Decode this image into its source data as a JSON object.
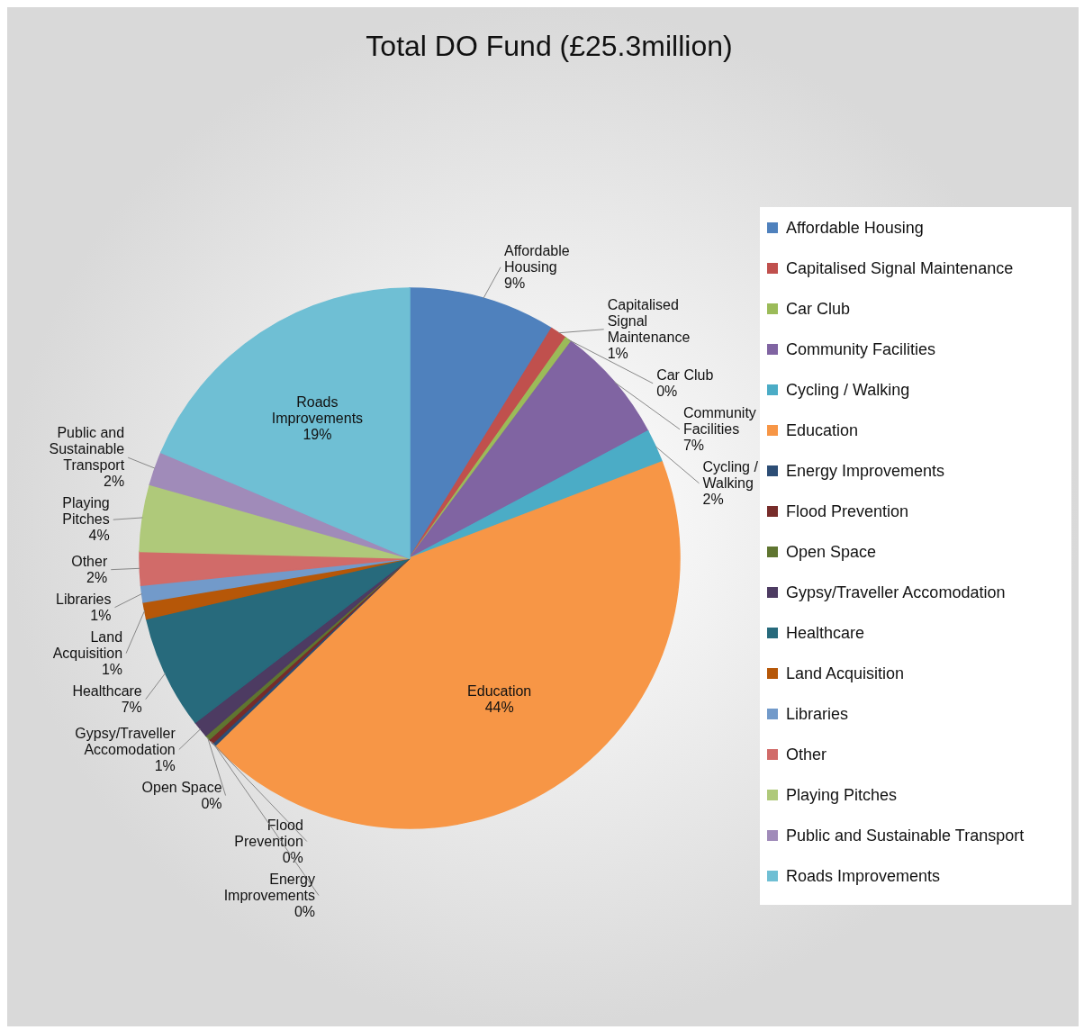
{
  "chart_data": {
    "type": "pie",
    "title": "Total DO Fund (£25.3million)",
    "categories": [
      "Affordable Housing",
      "Capitalised Signal Maintenance",
      "Car Club",
      "Community Facilities",
      "Cycling / Walking",
      "Education",
      "Energy Improvements",
      "Flood Prevention",
      "Open Space",
      "Gypsy/Traveller Accomodation",
      "Healthcare",
      "Land Acquisition",
      "Libraries",
      "Other",
      "Playing Pitches",
      "Public and Sustainable Transport",
      "Roads Improvements"
    ],
    "values": [
      8.8,
      1,
      0.4,
      7,
      2,
      43.6,
      0.2,
      0.3,
      0.3,
      1,
      6.8,
      1,
      1,
      2,
      4,
      2,
      18.6
    ],
    "value_labels": [
      "9%",
      "1%",
      "0%",
      "7%",
      "2%",
      "44%",
      "0%",
      "0%",
      "0%",
      "1%",
      "7%",
      "1%",
      "1%",
      "2%",
      "4%",
      "2%",
      "19%"
    ],
    "colors": [
      "#4f81bd",
      "#c0504d",
      "#9bbb59",
      "#8064a2",
      "#4bacc6",
      "#f79646",
      "#2c4d75",
      "#772c2a",
      "#5f7530",
      "#4d3b62",
      "#276a7c",
      "#b65708",
      "#729aca",
      "#d16b69",
      "#afc97a",
      "#a08bb9",
      "#6fbfd4"
    ],
    "legend": "right"
  }
}
